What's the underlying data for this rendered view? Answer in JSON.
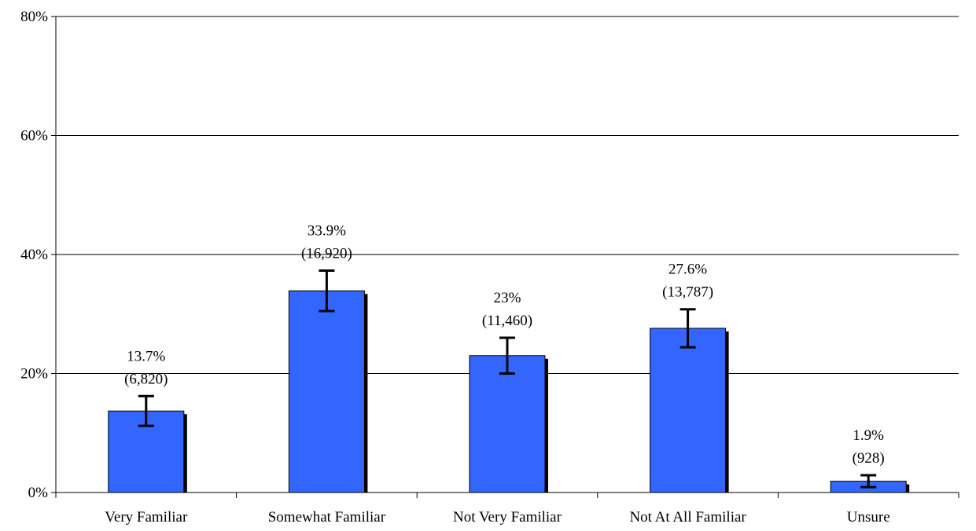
{
  "chart_data": {
    "type": "bar",
    "categories": [
      "Very Familiar",
      "Somewhat Familiar",
      "Not Very Familiar",
      "Not At All Familiar",
      "Unsure"
    ],
    "values": [
      13.7,
      33.9,
      23,
      27.6,
      1.9
    ],
    "error_bars": [
      {
        "low": 11.2,
        "high": 16.2
      },
      {
        "low": 30.5,
        "high": 37.3
      },
      {
        "low": 20.0,
        "high": 26.0
      },
      {
        "low": 24.4,
        "high": 30.8
      },
      {
        "low": 0.9,
        "high": 2.9
      }
    ],
    "data_labels": [
      {
        "percent": "13.7%",
        "count": "(6,820)"
      },
      {
        "percent": "33.9%",
        "count": "(16,920)"
      },
      {
        "percent": "23%",
        "count": "(11,460)"
      },
      {
        "percent": "27.6%",
        "count": "(13,787)"
      },
      {
        "percent": "1.9%",
        "count": "(928)"
      }
    ],
    "y_ticks": [
      0,
      20,
      40,
      60,
      80
    ],
    "y_tick_labels": [
      "0%",
      "20%",
      "40%",
      "60%",
      "80%"
    ],
    "ylim": [
      0,
      80
    ],
    "grid": true,
    "legend": "none",
    "bar_color": "#3366ff",
    "shadow_color": "#000000"
  }
}
